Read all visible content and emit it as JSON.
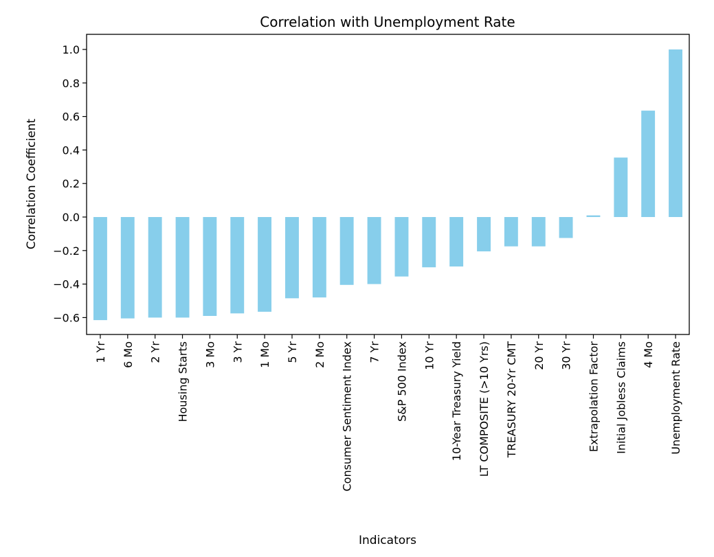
{
  "chart_data": {
    "type": "bar",
    "title": "Correlation with Unemployment Rate",
    "xlabel": "Indicators",
    "ylabel": "Correlation Coefficient",
    "ylim": [
      -0.7,
      1.07
    ],
    "yticks": [
      "1.0",
      "0.8",
      "0.6",
      "0.4",
      "0.2",
      "0.0",
      "−0.2",
      "−0.4",
      "−0.6"
    ],
    "ytick_values": [
      1.0,
      0.8,
      0.6,
      0.4,
      0.2,
      0.0,
      -0.2,
      -0.4,
      -0.6
    ],
    "grid": false,
    "bar_color": "#87CEEB",
    "categories": [
      "1 Yr",
      "6 Mo",
      "2 Yr",
      "Housing Starts",
      "3 Mo",
      "3 Yr",
      "1 Mo",
      "5 Yr",
      "2 Mo",
      "Consumer Sentiment Index",
      "7 Yr",
      "S&P 500 Index",
      "10 Yr",
      "10-Year Treasury Yield",
      "LT COMPOSITE (>10 Yrs)",
      "TREASURY 20-Yr CMT",
      "20 Yr",
      "30 Yr",
      "Extrapolation Factor",
      "Initial Jobless Claims",
      "4 Mo",
      "Unemployment Rate"
    ],
    "values": [
      -0.615,
      -0.605,
      -0.6,
      -0.6,
      -0.59,
      -0.575,
      -0.565,
      -0.485,
      -0.48,
      -0.405,
      -0.4,
      -0.355,
      -0.3,
      -0.295,
      -0.205,
      -0.175,
      -0.175,
      -0.125,
      0.01,
      0.355,
      0.635,
      1.0
    ]
  }
}
